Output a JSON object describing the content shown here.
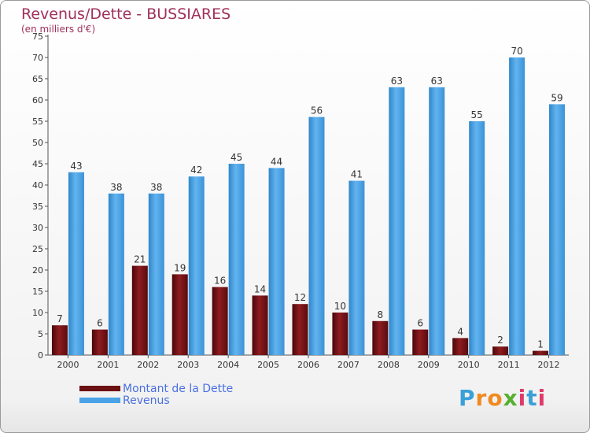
{
  "chart_data": {
    "type": "bar",
    "title": "Revenus/Dette - BUSSIARES",
    "subtitle": "(en milliers d'€)",
    "categories": [
      "2000",
      "2001",
      "2002",
      "2003",
      "2004",
      "2005",
      "2006",
      "2007",
      "2008",
      "2009",
      "2010",
      "2011",
      "2012"
    ],
    "series": [
      {
        "name": "Montant de la Dette",
        "color": "#6b0f12",
        "values": [
          7,
          6,
          21,
          19,
          16,
          14,
          12,
          10,
          8,
          6,
          4,
          2,
          1
        ]
      },
      {
        "name": "Revenus",
        "color": "#4aa3e6",
        "values": [
          43,
          38,
          38,
          42,
          45,
          44,
          56,
          41,
          63,
          63,
          55,
          70,
          59
        ]
      }
    ],
    "ylim": [
      0,
      75
    ],
    "yticks": [
      0,
      5,
      10,
      15,
      20,
      25,
      30,
      35,
      40,
      45,
      50,
      55,
      60,
      65,
      70,
      75
    ],
    "grid": false,
    "legend": "bottom-left"
  },
  "logo": {
    "text": "Proxiti"
  }
}
